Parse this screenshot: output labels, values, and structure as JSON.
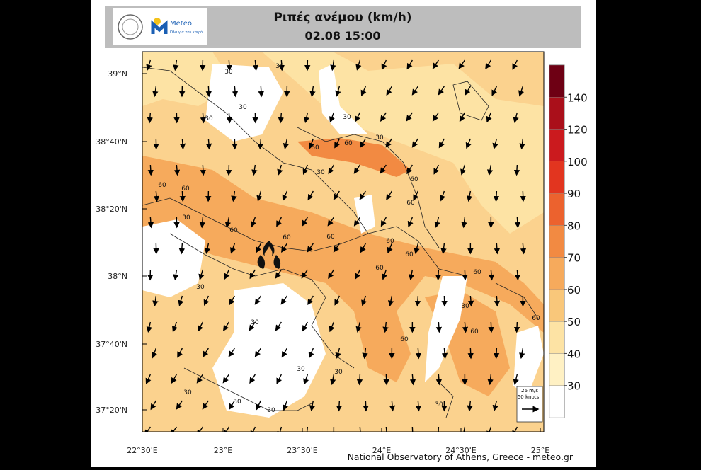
{
  "header": {
    "title": "Ριπές ανέμου (km/h)",
    "subtitle": "02.08 15:00",
    "logo_text": "Meteo",
    "logo_tagline": "Όλα για τον καιρό"
  },
  "map": {
    "lat_labels": [
      "39°N",
      "38°40'N",
      "38°20'N",
      "38°N",
      "37°40'N",
      "37°20'N"
    ],
    "lon_labels": [
      "22°30'E",
      "23°E",
      "23°30'E",
      "24°E",
      "24°30'E",
      "25°E"
    ],
    "contour_labels": [
      "30",
      "30",
      "30",
      "30",
      "30",
      "30",
      "60",
      "60",
      "60",
      "60",
      "30",
      "30",
      "60",
      "60",
      "60",
      "60",
      "60",
      "60",
      "60",
      "60",
      "60",
      "30",
      "30",
      "60",
      "60",
      "60",
      "30",
      "30",
      "30",
      "30",
      "30",
      "30",
      "30"
    ]
  },
  "colorbar": {
    "ticks": [
      30,
      40,
      50,
      60,
      70,
      80,
      90,
      100,
      120,
      140
    ],
    "colors": [
      "#ffffff",
      "#fff1c4",
      "#fde3a4",
      "#f9c77a",
      "#f6aa5c",
      "#f28a42",
      "#ec622e",
      "#e2351f",
      "#cb1a1e",
      "#aa0f1a",
      "#6e0014"
    ]
  },
  "vector_legend": {
    "speed": "26 m/s",
    "knots": "50 knots"
  },
  "credit": "National Observatory of Athens, Greece - meteo.gr"
}
